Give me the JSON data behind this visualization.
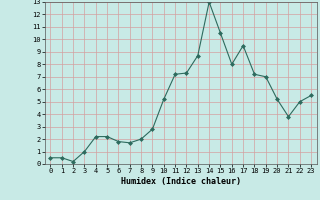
{
  "xlabel": "Humidex (Indice chaleur)",
  "line_color": "#2d6b5e",
  "marker": "D",
  "marker_size": 2.0,
  "bg_color": "#c8eae6",
  "grid_color": "#d4a0a0",
  "xlim": [
    -0.5,
    23.5
  ],
  "ylim": [
    0,
    13
  ],
  "yticks": [
    0,
    1,
    2,
    3,
    4,
    5,
    6,
    7,
    8,
    9,
    10,
    11,
    12,
    13
  ],
  "xticks": [
    0,
    1,
    2,
    3,
    4,
    5,
    6,
    7,
    8,
    9,
    10,
    11,
    12,
    13,
    14,
    15,
    16,
    17,
    18,
    19,
    20,
    21,
    22,
    23
  ],
  "data_x": [
    0,
    1,
    2,
    3,
    4,
    5,
    6,
    7,
    8,
    9,
    10,
    11,
    12,
    13,
    14,
    15,
    16,
    17,
    18,
    19,
    20,
    21,
    22,
    23
  ],
  "data_y": [
    0.5,
    0.5,
    0.2,
    1.0,
    2.2,
    2.2,
    1.8,
    1.7,
    2.0,
    2.8,
    5.2,
    7.2,
    7.3,
    8.7,
    13.0,
    10.5,
    8.0,
    9.5,
    7.2,
    7.0,
    5.2,
    3.8,
    5.0,
    5.5
  ]
}
